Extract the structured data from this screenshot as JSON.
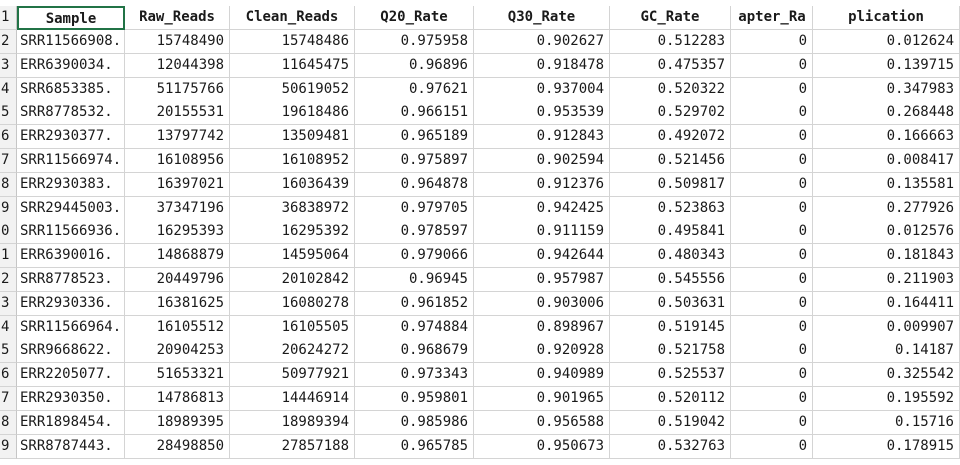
{
  "sheet": {
    "headers": [
      "Sample",
      "Raw_Reads",
      "Clean_Reads",
      "Q20_Rate",
      "Q30_Rate",
      "GC_Rate",
      "apter_Ra",
      "plication"
    ],
    "row_numbers": [
      "1",
      "2",
      "3",
      "4",
      "5",
      "6",
      "7",
      "8",
      "9",
      "0",
      "1",
      "2",
      "3",
      "4",
      "5",
      "6",
      "7",
      "8",
      "9"
    ],
    "rows": [
      [
        "SRR11566908.",
        "15748490",
        "15748486",
        "0.975958",
        "0.902627",
        "0.512283",
        "0",
        "0.012624"
      ],
      [
        "ERR6390034.",
        "12044398",
        "11645475",
        "0.96896",
        "0.918478",
        "0.475357",
        "0",
        "0.139715"
      ],
      [
        "SRR6853385.",
        "51175766",
        "50619052",
        "0.97621",
        "0.937004",
        "0.520322",
        "0",
        "0.347983"
      ],
      [
        "SRR8778532.",
        "20155531",
        "19618486",
        "0.966151",
        "0.953539",
        "0.529702",
        "0",
        "0.268448"
      ],
      [
        "ERR2930377.",
        "13797742",
        "13509481",
        "0.965189",
        "0.912843",
        "0.492072",
        "0",
        "0.166663"
      ],
      [
        "SRR11566974.",
        "16108956",
        "16108952",
        "0.975897",
        "0.902594",
        "0.521456",
        "0",
        "0.008417"
      ],
      [
        "ERR2930383.",
        "16397021",
        "16036439",
        "0.964878",
        "0.912376",
        "0.509817",
        "0",
        "0.135581"
      ],
      [
        "SRR29445003.",
        "37347196",
        "36838972",
        "0.979705",
        "0.942425",
        "0.523863",
        "0",
        "0.277926"
      ],
      [
        "SRR11566936.",
        "16295393",
        "16295392",
        "0.978597",
        "0.911159",
        "0.495841",
        "0",
        "0.012576"
      ],
      [
        "ERR6390016.",
        "14868879",
        "14595064",
        "0.979066",
        "0.942644",
        "0.480343",
        "0",
        "0.181843"
      ],
      [
        "SRR8778523.",
        "20449796",
        "20102842",
        "0.96945",
        "0.957987",
        "0.545556",
        "0",
        "0.211903"
      ],
      [
        "ERR2930336.",
        "16381625",
        "16080278",
        "0.961852",
        "0.903006",
        "0.503631",
        "0",
        "0.164411"
      ],
      [
        "SRR11566964.",
        "16105512",
        "16105505",
        "0.974884",
        "0.898967",
        "0.519145",
        "0",
        "0.009907"
      ],
      [
        "SRR9668622.",
        "20904253",
        "20624272",
        "0.968679",
        "0.920928",
        "0.521758",
        "0",
        "0.14187"
      ],
      [
        "ERR2205077.",
        "51653321",
        "50977921",
        "0.973343",
        "0.940989",
        "0.525537",
        "0",
        "0.325542"
      ],
      [
        "ERR2930350.",
        "14786813",
        "14446914",
        "0.959801",
        "0.901965",
        "0.520112",
        "0",
        "0.195592"
      ],
      [
        "ERR1898454.",
        "18989395",
        "18989394",
        "0.985986",
        "0.956588",
        "0.519042",
        "0",
        "0.15716"
      ],
      [
        "SRR8787443.",
        "28498850",
        "27857188",
        "0.965785",
        "0.950673",
        "0.532763",
        "0",
        "0.178915"
      ]
    ]
  }
}
